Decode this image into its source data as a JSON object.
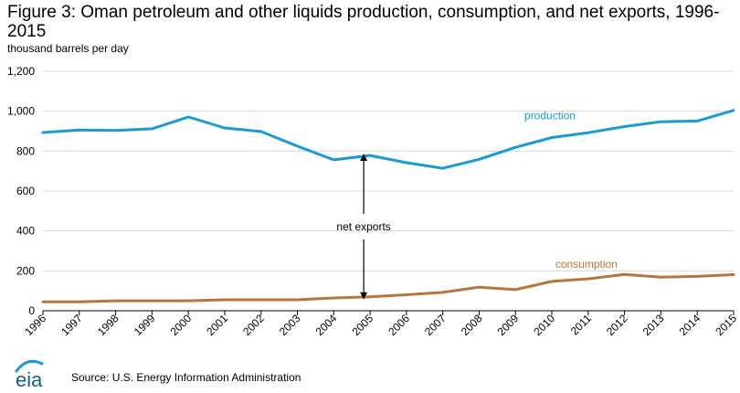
{
  "header": {
    "title": "Figure 3: Oman petroleum and other liquids production, consumption, and net exports, 1996-2015",
    "units": "thousand barrels per day"
  },
  "footer": {
    "source": "Source: U.S. Energy Information Administration",
    "logo_text": "eia",
    "logo_icon": "eia-logo-icon"
  },
  "chart_data": {
    "type": "line",
    "title": "Figure 3: Oman petroleum and other liquids production, consumption, and net exports, 1996-2015",
    "ylabel": "thousand barrels per day",
    "xlabel": "",
    "x": [
      "1996",
      "1997",
      "1998",
      "1999",
      "2000",
      "2001",
      "2002",
      "2003",
      "2004",
      "2005",
      "2006",
      "2007",
      "2008",
      "2009",
      "2010",
      "2011",
      "2012",
      "2013",
      "2014",
      "2015"
    ],
    "ylim": [
      0,
      1200
    ],
    "yticks": [
      0,
      200,
      400,
      600,
      800,
      1000,
      1200
    ],
    "ytick_labels": [
      "0",
      "200",
      "400",
      "600",
      "800",
      "1,000",
      "1,200"
    ],
    "grid": true,
    "series": [
      {
        "name": "production",
        "color": "#1a9ad6",
        "values": [
          893,
          906,
          903,
          912,
          971,
          916,
          898,
          825,
          756,
          778,
          742,
          714,
          759,
          819,
          868,
          892,
          923,
          947,
          951,
          1004
        ]
      },
      {
        "name": "consumption",
        "color": "#b97539",
        "values": [
          45,
          45,
          50,
          50,
          50,
          55,
          55,
          55,
          64,
          70,
          80,
          92,
          118,
          106,
          147,
          160,
          182,
          168,
          172,
          181
        ]
      }
    ],
    "annotations": [
      {
        "text": "net exports",
        "year": "2005"
      }
    ]
  }
}
